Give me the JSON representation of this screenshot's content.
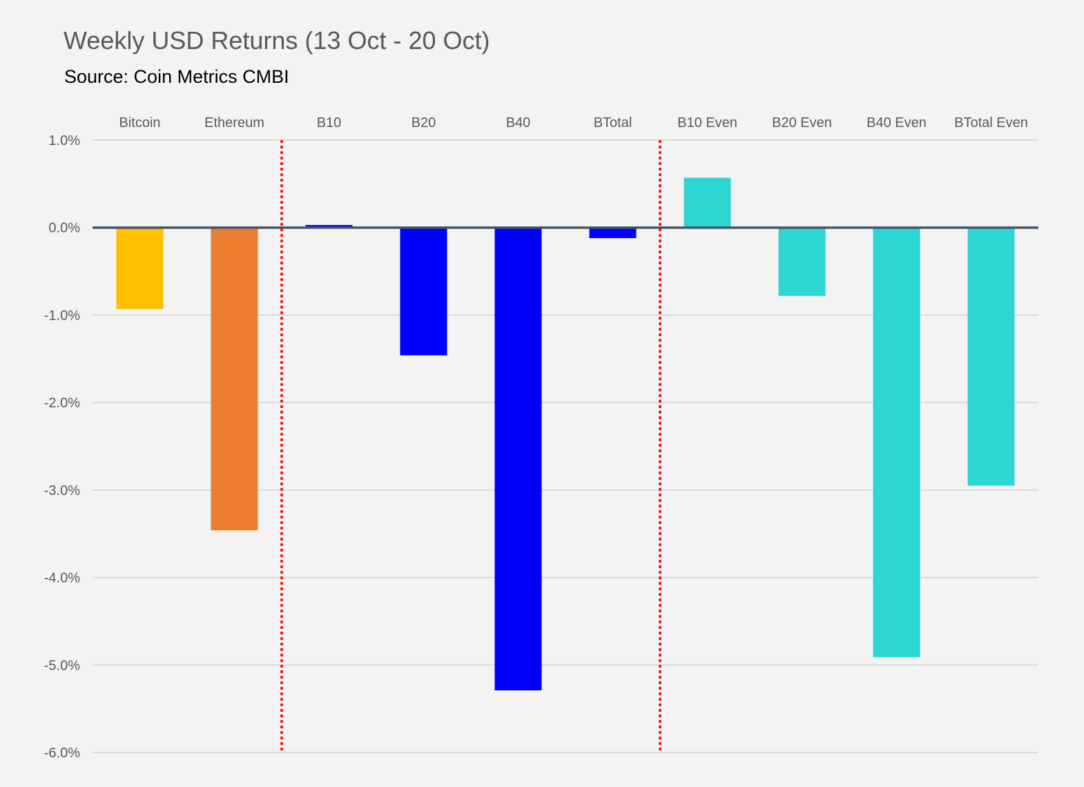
{
  "chart_data": {
    "type": "bar",
    "title": "Weekly USD Returns (13 Oct - 20 Oct)",
    "subtitle": "Source: Coin Metrics CMBI",
    "categories": [
      "Bitcoin",
      "Ethereum",
      "B10",
      "B20",
      "B40",
      "BTotal",
      "B10 Even",
      "B20 Even",
      "B40 Even",
      "BTotal Even"
    ],
    "values": [
      -0.93,
      -3.46,
      0.03,
      -1.46,
      -5.29,
      -0.12,
      0.57,
      -0.78,
      -4.91,
      -2.95
    ],
    "bar_colors": [
      "#ffc000",
      "#ed7d31",
      "#0000ff",
      "#0000ff",
      "#0000ff",
      "#0000ff",
      "#2dd5d3",
      "#2dd5d3",
      "#2dd5d3",
      "#2dd5d3"
    ],
    "ylim": [
      -6.0,
      1.0
    ],
    "yticks": [
      1.0,
      0.0,
      -1.0,
      -2.0,
      -3.0,
      -4.0,
      -5.0,
      -6.0
    ],
    "ytick_labels": [
      "1.0%",
      "0.0%",
      "-1.0%",
      "-2.0%",
      "-3.0%",
      "-4.0%",
      "-5.0%",
      "-6.0%"
    ],
    "category_labels_position": "top",
    "grid": true,
    "separators_after_category": [
      "Ethereum",
      "BTotal"
    ],
    "separator_color": "#ff0000",
    "zero_line_color": "#44546a",
    "grid_color": "#d9d9d9",
    "label_color": "#595959"
  }
}
